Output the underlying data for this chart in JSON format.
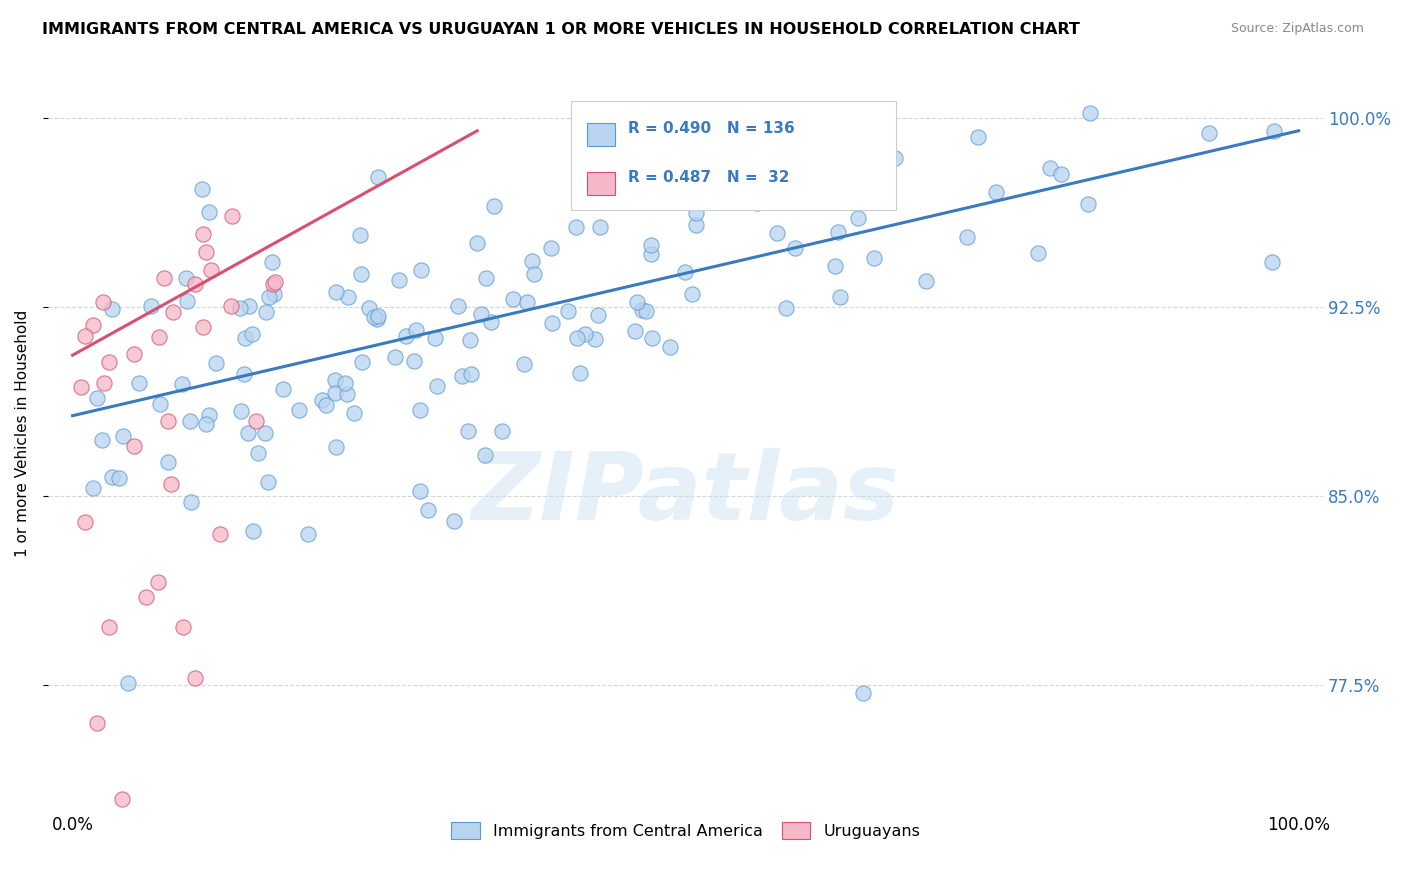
{
  "title": "IMMIGRANTS FROM CENTRAL AMERICA VS URUGUAYAN 1 OR MORE VEHICLES IN HOUSEHOLD CORRELATION CHART",
  "source": "Source: ZipAtlas.com",
  "ylabel": "1 or more Vehicles in Household",
  "r_blue": 0.49,
  "n_blue": 136,
  "r_pink": 0.487,
  "n_pink": 32,
  "xlim": [
    0.0,
    1.0
  ],
  "ylim": [
    0.725,
    1.025
  ],
  "ytick_labels": [
    "77.5%",
    "85.0%",
    "92.5%",
    "100.0%"
  ],
  "ytick_values": [
    0.775,
    0.85,
    0.925,
    1.0
  ],
  "color_blue_fill": "#b8d4ee",
  "color_blue_edge": "#5b9bd5",
  "color_pink_fill": "#f4b8c8",
  "color_pink_edge": "#d94f6e",
  "color_blue_line": "#3a7abf",
  "color_pink_line": "#d94f6e",
  "legend_blue_label": "Immigrants from Central America",
  "legend_pink_label": "Uruguayans",
  "watermark": "ZIPatlas",
  "blue_trend_x0": 0.0,
  "blue_trend_x1": 1.0,
  "blue_trend_y0": 0.882,
  "blue_trend_y1": 0.995,
  "pink_trend_x0": 0.0,
  "pink_trend_x1": 0.33,
  "pink_trend_y0": 0.906,
  "pink_trend_y1": 0.995
}
